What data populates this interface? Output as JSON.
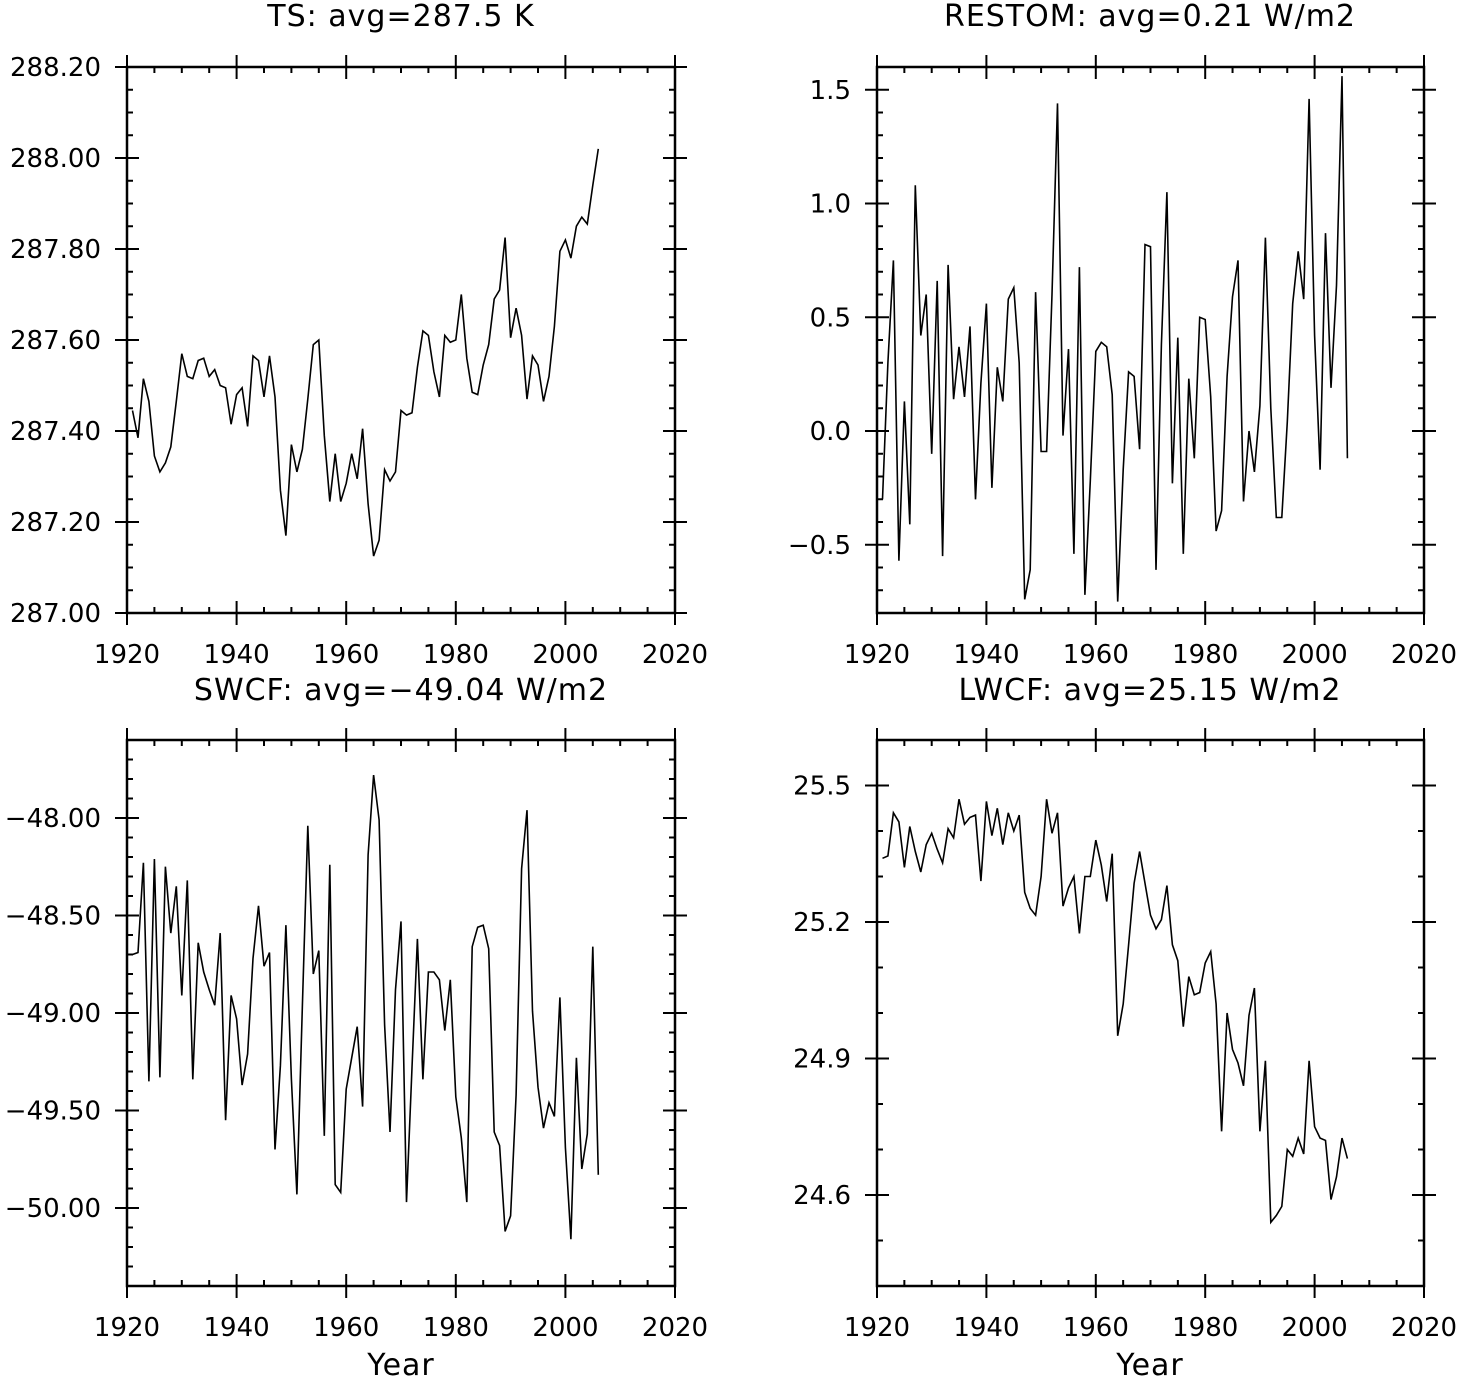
{
  "chart_data": [
    {
      "type": "line",
      "title": "TS: avg=287.5 K",
      "xlabel": "",
      "ylabel": "",
      "xlim": [
        1920,
        2020
      ],
      "ylim": [
        287.0,
        288.2
      ],
      "xticks": [
        1920,
        1940,
        1960,
        1980,
        2000,
        2020
      ],
      "xtick_labels": [
        "1920",
        "1940",
        "1960",
        "1980",
        "2000",
        "2020"
      ],
      "yticks": [
        287.0,
        287.2,
        287.4,
        287.6,
        287.8,
        288.0,
        288.2
      ],
      "ytick_labels": [
        "287.00",
        "287.20",
        "287.40",
        "287.60",
        "287.80",
        "288.00",
        "288.20"
      ],
      "yminor_step": 0.05,
      "x_start": 1921,
      "values": [
        287.445,
        287.385,
        287.515,
        287.465,
        287.345,
        287.31,
        287.33,
        287.365,
        287.465,
        287.57,
        287.52,
        287.515,
        287.555,
        287.56,
        287.52,
        287.535,
        287.5,
        287.495,
        287.415,
        287.48,
        287.495,
        287.41,
        287.565,
        287.555,
        287.475,
        287.565,
        287.475,
        287.27,
        287.17,
        287.37,
        287.31,
        287.36,
        287.47,
        287.59,
        287.6,
        287.39,
        287.245,
        287.35,
        287.245,
        287.285,
        287.35,
        287.295,
        287.405,
        287.24,
        287.125,
        287.16,
        287.315,
        287.29,
        287.31,
        287.445,
        287.435,
        287.44,
        287.54,
        287.62,
        287.61,
        287.53,
        287.475,
        287.61,
        287.595,
        287.6,
        287.7,
        287.56,
        287.485,
        287.48,
        287.545,
        287.59,
        287.69,
        287.71,
        287.825,
        287.605,
        287.67,
        287.61,
        287.47,
        287.565,
        287.545,
        287.465,
        287.52,
        287.63,
        287.795,
        287.82,
        287.78,
        287.85,
        287.87,
        287.855,
        287.94,
        288.02
      ]
    },
    {
      "type": "line",
      "title": "RESTOM: avg=0.21 W/m2",
      "xlabel": "",
      "ylabel": "",
      "xlim": [
        1920,
        2020
      ],
      "ylim": [
        -0.8,
        1.6
      ],
      "xticks": [
        1920,
        1940,
        1960,
        1980,
        2000,
        2020
      ],
      "xtick_labels": [
        "1920",
        "1940",
        "1960",
        "1980",
        "2000",
        "2020"
      ],
      "yticks": [
        -0.5,
        0.0,
        0.5,
        1.0,
        1.5
      ],
      "ytick_labels": [
        "−0.5",
        "0.0",
        "0.5",
        "1.0",
        "1.5"
      ],
      "yminor_step": 0.1,
      "x_start": 1921,
      "values": [
        -0.3,
        0.3,
        0.75,
        -0.57,
        0.13,
        -0.41,
        1.08,
        0.42,
        0.6,
        -0.1,
        0.66,
        -0.55,
        0.73,
        0.14,
        0.37,
        0.15,
        0.46,
        -0.3,
        0.21,
        0.56,
        -0.25,
        0.28,
        0.13,
        0.58,
        0.63,
        0.3,
        -0.74,
        -0.61,
        0.61,
        -0.09,
        -0.09,
        0.6,
        1.44,
        -0.02,
        0.36,
        -0.54,
        0.72,
        -0.72,
        -0.22,
        0.35,
        0.39,
        0.37,
        0.16,
        -0.75,
        -0.17,
        0.26,
        0.24,
        -0.08,
        0.82,
        0.81,
        -0.61,
        0.38,
        1.05,
        -0.23,
        0.41,
        -0.54,
        0.23,
        -0.12,
        0.5,
        0.49,
        0.15,
        -0.44,
        -0.35,
        0.24,
        0.59,
        0.75,
        -0.31,
        0.0,
        -0.18,
        0.11,
        0.85,
        0.1,
        -0.38,
        -0.38,
        0.04,
        0.56,
        0.79,
        0.58,
        1.46,
        0.42,
        -0.17,
        0.87,
        0.19,
        0.64,
        1.56,
        -0.12
      ]
    },
    {
      "type": "line",
      "title": "SWCF: avg=−49.04 W/m2",
      "xlabel": "Year",
      "ylabel": "",
      "xlim": [
        1920,
        2020
      ],
      "ylim": [
        -50.4,
        -47.6
      ],
      "xticks": [
        1920,
        1940,
        1960,
        1980,
        2000,
        2020
      ],
      "xtick_labels": [
        "1920",
        "1940",
        "1960",
        "1980",
        "2000",
        "2020"
      ],
      "yticks": [
        -50.0,
        -49.5,
        -49.0,
        -48.5,
        -48.0
      ],
      "ytick_labels": [
        "−50.00",
        "−49.50",
        "−49.00",
        "−48.50",
        "−48.00"
      ],
      "yminor_step": 0.1,
      "x_start": 1921,
      "values": [
        -48.7,
        -48.69,
        -48.23,
        -49.35,
        -48.21,
        -49.33,
        -48.25,
        -48.59,
        -48.35,
        -48.91,
        -48.32,
        -49.34,
        -48.64,
        -48.79,
        -48.88,
        -48.96,
        -48.59,
        -49.55,
        -48.91,
        -49.03,
        -49.37,
        -49.21,
        -48.72,
        -48.45,
        -48.76,
        -48.69,
        -49.7,
        -49.27,
        -48.55,
        -49.34,
        -49.93,
        -48.96,
        -48.04,
        -48.8,
        -48.68,
        -49.63,
        -48.24,
        -49.88,
        -49.92,
        -49.39,
        -49.23,
        -49.07,
        -49.48,
        -48.19,
        -47.78,
        -48.01,
        -49.06,
        -49.61,
        -48.88,
        -48.53,
        -49.97,
        -49.28,
        -48.62,
        -49.34,
        -48.79,
        -48.79,
        -48.83,
        -49.09,
        -48.83,
        -49.43,
        -49.64,
        -49.97,
        -48.66,
        -48.56,
        -48.55,
        -48.67,
        -49.61,
        -49.68,
        -50.12,
        -50.04,
        -49.42,
        -48.26,
        -47.96,
        -48.99,
        -49.38,
        -49.59,
        -49.46,
        -49.53,
        -48.92,
        -49.69,
        -50.16,
        -49.23,
        -49.8,
        -49.62,
        -48.66,
        -49.83
      ]
    },
    {
      "type": "line",
      "title": "LWCF: avg=25.15 W/m2",
      "xlabel": "Year",
      "ylabel": "",
      "xlim": [
        1920,
        2020
      ],
      "ylim": [
        24.4,
        25.6
      ],
      "xticks": [
        1920,
        1940,
        1960,
        1980,
        2000,
        2020
      ],
      "xtick_labels": [
        "1920",
        "1940",
        "1960",
        "1980",
        "2000",
        "2020"
      ],
      "yticks": [
        24.6,
        24.9,
        25.2,
        25.5
      ],
      "ytick_labels": [
        "24.6",
        "24.9",
        "25.2",
        "25.5"
      ],
      "yminor_step": 0.1,
      "x_start": 1921,
      "values": [
        25.34,
        25.345,
        25.44,
        25.42,
        25.32,
        25.41,
        25.355,
        25.31,
        25.37,
        25.395,
        25.36,
        25.33,
        25.405,
        25.385,
        25.47,
        25.415,
        25.43,
        25.435,
        25.29,
        25.465,
        25.39,
        25.45,
        25.37,
        25.44,
        25.4,
        25.435,
        25.265,
        25.23,
        25.215,
        25.3,
        25.47,
        25.395,
        25.44,
        25.235,
        25.275,
        25.3,
        25.175,
        25.3,
        25.3,
        25.38,
        25.325,
        25.245,
        25.35,
        24.95,
        25.02,
        25.15,
        25.285,
        25.355,
        25.285,
        25.215,
        25.185,
        25.205,
        25.28,
        25.15,
        25.115,
        24.97,
        25.08,
        25.04,
        25.045,
        25.11,
        25.135,
        25.02,
        24.74,
        25.0,
        24.92,
        24.89,
        24.84,
        24.995,
        25.055,
        24.74,
        24.895,
        24.54,
        24.555,
        24.575,
        24.7,
        24.685,
        24.725,
        24.69,
        24.895,
        24.75,
        24.725,
        24.72,
        24.59,
        24.64,
        24.725,
        24.68
      ]
    }
  ]
}
